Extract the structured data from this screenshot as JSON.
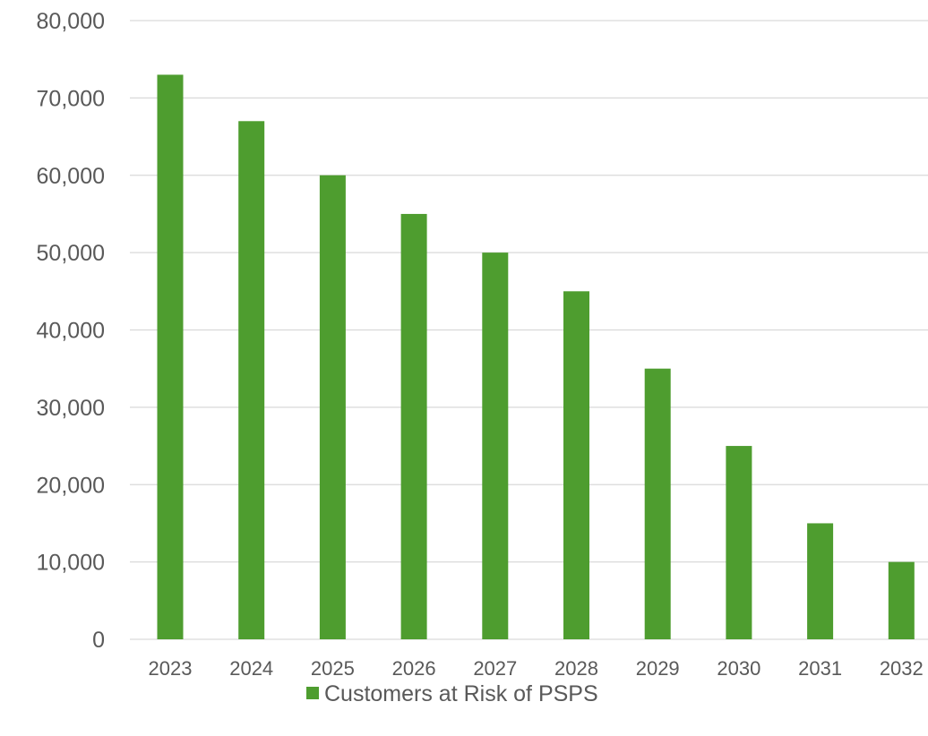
{
  "chart_data": {
    "type": "bar",
    "title": "",
    "xlabel": "",
    "ylabel": "",
    "categories": [
      "2023",
      "2024",
      "2025",
      "2026",
      "2027",
      "2028",
      "2029",
      "2030",
      "2031",
      "2032"
    ],
    "series": [
      {
        "name": "Customers at Risk of PSPS",
        "values": [
          73000,
          67000,
          60000,
          55000,
          50000,
          45000,
          35000,
          25000,
          15000,
          10000
        ],
        "color": "#4e9d2f"
      }
    ],
    "ylim": [
      0,
      80000
    ],
    "y_ticks": [
      0,
      10000,
      20000,
      30000,
      40000,
      50000,
      60000,
      70000,
      80000
    ],
    "y_tick_labels": [
      "0",
      "10,000",
      "20,000",
      "30,000",
      "40,000",
      "50,000",
      "60,000",
      "70,000",
      "80,000"
    ],
    "grid": true,
    "legend": {
      "position": "bottom",
      "label": "Customers at Risk of PSPS"
    },
    "colors": {
      "bar": "#4e9d2f",
      "grid": "#d9d9d9",
      "text": "#595959"
    }
  }
}
